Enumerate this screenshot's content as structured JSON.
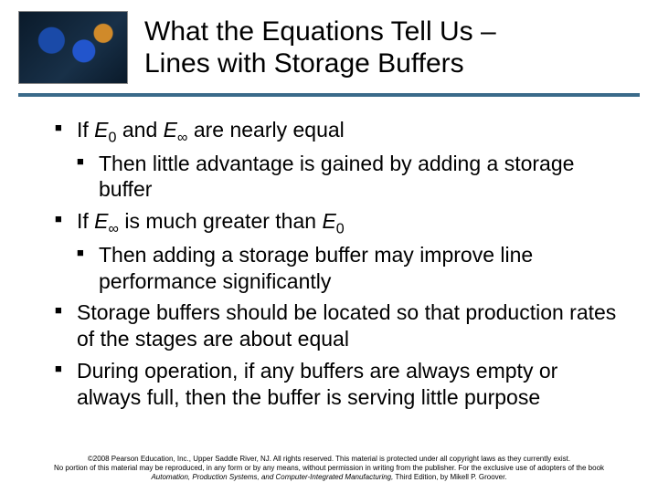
{
  "title_line1": "What the Equations Tell Us –",
  "title_line2": "Lines with Storage Buffers",
  "bullets": [
    {
      "pre": "If ",
      "var1": "E",
      "sub1": "0",
      "mid": " and ",
      "var2": "E",
      "sub2": "∞",
      "post": " are nearly equal",
      "sub": "Then little advantage is gained by adding a storage buffer"
    },
    {
      "pre": "If ",
      "var1": "E",
      "sub1": "∞",
      "mid": " is much greater than ",
      "var2": "E",
      "sub2": "0",
      "post": "",
      "sub": "Then adding a storage buffer may improve line performance significantly"
    },
    {
      "plain": "Storage buffers should be located so that production rates of the stages are about equal"
    },
    {
      "plain": "During operation, if any buffers are always empty or always full, then the buffer is serving little purpose"
    }
  ],
  "footer": {
    "line1": "©2008 Pearson Education, Inc., Upper Saddle River, NJ. All rights reserved. This material is protected under all copyright laws as they currently exist.",
    "line2_a": "No portion of this material may be reproduced, in any form or by any means, without permission in writing from the publisher. For the exclusive use of adopters of the book",
    "line2_b": "Automation, Production Systems, and Computer-Integrated Manufacturing,",
    "line2_c": " Third Edition, by Mikell P. Groover."
  },
  "colors": {
    "rule": "#3a6a8a",
    "text": "#000000",
    "bg": "#ffffff"
  }
}
